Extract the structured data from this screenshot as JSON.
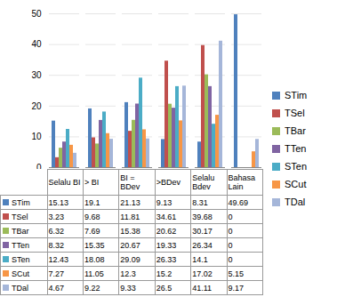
{
  "chart_data": {
    "type": "bar",
    "categories": [
      "Selalu BI",
      "> BI",
      "BI = BDev",
      ">BDev",
      "Selalu Bdev",
      "Bahasa Lain"
    ],
    "series": [
      {
        "name": "STim",
        "color": "#4f81bd",
        "values": [
          15.13,
          19.1,
          21.13,
          9.13,
          8.31,
          49.69
        ]
      },
      {
        "name": "TSel",
        "color": "#c0504d",
        "values": [
          3.23,
          9.68,
          11.81,
          34.61,
          39.68,
          0
        ]
      },
      {
        "name": "TBar",
        "color": "#9bbb59",
        "values": [
          6.32,
          7.69,
          15.38,
          20.62,
          30.17,
          0
        ]
      },
      {
        "name": "TTen",
        "color": "#8064a2",
        "values": [
          8.32,
          15.35,
          20.67,
          19.33,
          26.34,
          0
        ]
      },
      {
        "name": "STen",
        "color": "#4bacc6",
        "values": [
          12.43,
          18.08,
          29.09,
          26.33,
          14.1,
          0
        ]
      },
      {
        "name": "SCut",
        "color": "#f79646",
        "values": [
          7.27,
          11.05,
          12.3,
          15.2,
          17.02,
          5.15
        ]
      },
      {
        "name": "TDal",
        "color": "#a5b6d9",
        "values": [
          4.67,
          9.22,
          9.33,
          26.5,
          41.11,
          9.17
        ]
      }
    ],
    "ylim": [
      0,
      50
    ],
    "yticks": [
      0,
      10,
      20,
      30,
      40,
      50
    ],
    "grid": true,
    "legend": "right"
  }
}
